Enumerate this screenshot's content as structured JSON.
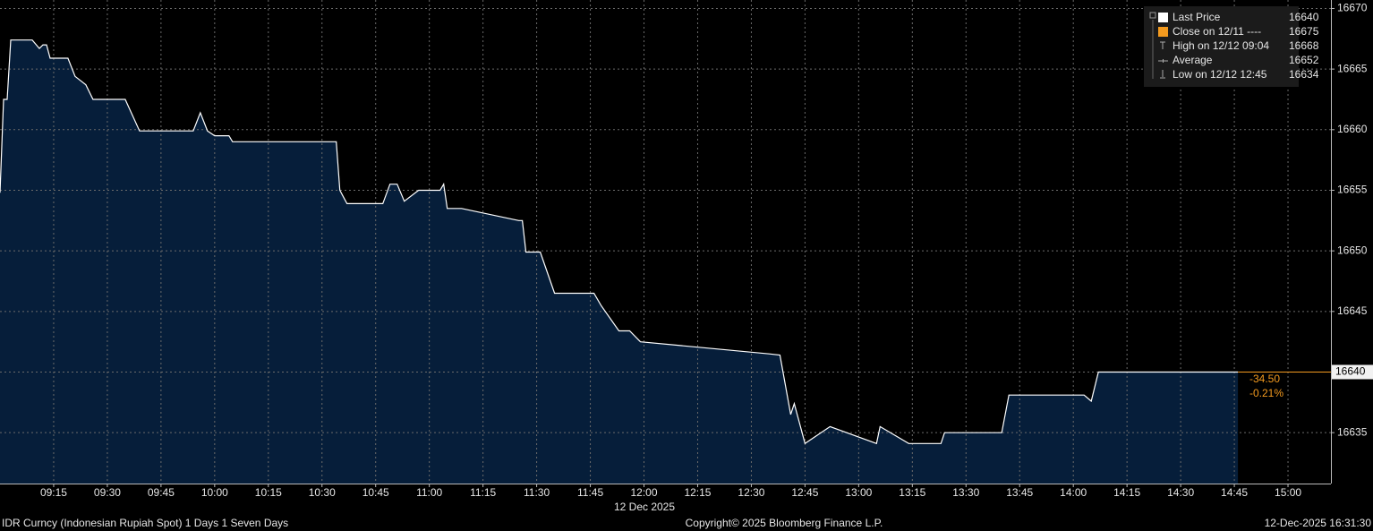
{
  "chart_data": {
    "type": "line",
    "x": [
      "09:00",
      "09:01",
      "09:02",
      "09:03",
      "09:09",
      "09:11",
      "09:12",
      "09:13",
      "09:14",
      "09:19",
      "09:21",
      "09:24",
      "09:26",
      "09:35",
      "09:39",
      "09:54",
      "09:56",
      "09:58",
      "10:00",
      "10:04",
      "10:05",
      "10:34",
      "10:35",
      "10:37",
      "10:47",
      "10:49",
      "10:51",
      "10:53",
      "10:57",
      "11:03",
      "11:04",
      "11:05",
      "11:09",
      "11:25",
      "11:26",
      "11:27",
      "11:31",
      "11:35",
      "11:46",
      "11:48",
      "11:53",
      "11:56",
      "11:59",
      "12:35",
      "12:38",
      "12:41",
      "12:42",
      "12:45",
      "12:52",
      "13:05",
      "13:06",
      "13:14",
      "13:23",
      "13:24",
      "13:40",
      "13:42",
      "14:03",
      "14:05",
      "14:07",
      "14:46"
    ],
    "values": [
      16654.8,
      16662.5,
      16662.5,
      16667.4,
      16667.4,
      16666.7,
      16667.0,
      16667.0,
      16665.9,
      16665.9,
      16664.4,
      16663.7,
      16662.5,
      16662.5,
      16659.9,
      16659.9,
      16661.4,
      16659.9,
      16659.5,
      16659.5,
      16659.0,
      16659.0,
      16655.0,
      16653.9,
      16653.9,
      16655.5,
      16655.5,
      16654.1,
      16655.0,
      16655.0,
      16655.5,
      16653.5,
      16653.5,
      16652.5,
      16652.5,
      16649.9,
      16649.9,
      16646.5,
      16646.5,
      16645.5,
      16643.4,
      16643.4,
      16642.5,
      16641.5,
      16641.4,
      16636.5,
      16637.4,
      16634.1,
      16635.5,
      16634.1,
      16635.5,
      16634.1,
      16634.1,
      16635.0,
      16635.0,
      16638.1,
      16638.1,
      16637.6,
      16640.0,
      16640.0
    ],
    "color": "#ffffff",
    "fill_color": "#061e3a",
    "xlim": [
      "09:00",
      "15:12"
    ],
    "xticks": [
      "09:15",
      "09:30",
      "09:45",
      "10:00",
      "10:15",
      "10:30",
      "10:45",
      "11:00",
      "11:15",
      "11:30",
      "11:45",
      "12:00",
      "12:15",
      "12:30",
      "12:45",
      "13:00",
      "13:15",
      "13:30",
      "13:45",
      "14:00",
      "14:15",
      "14:30",
      "14:45",
      "15:00"
    ],
    "ylim": [
      16630.8,
      16670.7
    ],
    "yticks": [
      16635,
      16640,
      16645,
      16650,
      16655,
      16660,
      16665,
      16670
    ],
    "grid": true,
    "x_date_label": "12 Dec 2025",
    "last_price": 16640,
    "last_price_color": "#f39a1f",
    "annotations": [
      "-34.50",
      "-0.21%"
    ],
    "legend": [
      {
        "label": "Last Price",
        "value": 16640
      },
      {
        "label": "Close on 12/11 ----",
        "value": 16675
      },
      {
        "label": "High on 12/12 09:04",
        "value": 16668
      },
      {
        "label": "Average",
        "value": 16652
      },
      {
        "label": "Low on 12/12 12:45",
        "value": 16634
      }
    ]
  },
  "footer": {
    "left": "IDR Curncy (Indonesian Rupiah Spot) 1 Days 1 Seven Days",
    "center": "Copyright© 2025 Bloomberg Finance L.P.",
    "right": "12-Dec-2025 16:31:30"
  }
}
